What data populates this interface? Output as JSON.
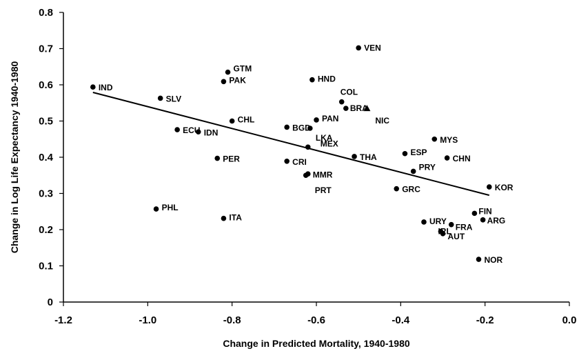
{
  "chart_data": {
    "type": "scatter",
    "xlabel": "Change in Predicted Mortality, 1940-1980",
    "ylabel": "Change in Log Life Expectancy 1940-1980",
    "xlim": [
      -1.2,
      0.0
    ],
    "ylim": [
      0,
      0.8
    ],
    "x_ticks": [
      -1.2,
      -1.0,
      -0.8,
      -0.6,
      -0.4,
      -0.2,
      0.0
    ],
    "x_tick_labels": [
      "-1.2",
      "-1.0",
      "-0.8",
      "-0.6",
      "-0.4",
      "-0.2",
      "0.0"
    ],
    "y_ticks": [
      0,
      0.1,
      0.2,
      0.3,
      0.4,
      0.5,
      0.6,
      0.7,
      0.8
    ],
    "y_tick_labels": [
      "0",
      "0.1",
      "0.2",
      "0.3",
      "0.4",
      "0.5",
      "0.6",
      "0.7",
      "0.8"
    ],
    "grid": false,
    "points": [
      {
        "label": "IND",
        "x": -1.13,
        "y": 0.594
      },
      {
        "label": "SLV",
        "x": -0.97,
        "y": 0.563
      },
      {
        "label": "ECU",
        "x": -0.93,
        "y": 0.476
      },
      {
        "label": "IDN",
        "x": -0.88,
        "y": 0.47
      },
      {
        "label": "GTM",
        "x": -0.81,
        "y": 0.635
      },
      {
        "label": "PAK",
        "x": -0.82,
        "y": 0.609
      },
      {
        "label": "CHL",
        "x": -0.8,
        "y": 0.5
      },
      {
        "label": "PER",
        "x": -0.835,
        "y": 0.397
      },
      {
        "label": "PHL",
        "x": -0.98,
        "y": 0.257
      },
      {
        "label": "ITA",
        "x": -0.82,
        "y": 0.231
      },
      {
        "label": "HND",
        "x": -0.61,
        "y": 0.614
      },
      {
        "label": "VEN",
        "x": -0.5,
        "y": 0.702
      },
      {
        "label": "COL",
        "x": -0.54,
        "y": 0.553
      },
      {
        "label": "BRA",
        "x": -0.53,
        "y": 0.535
      },
      {
        "label": "NIC",
        "x": -0.48,
        "y": 0.535
      },
      {
        "label": "PAN",
        "x": -0.6,
        "y": 0.503
      },
      {
        "label": "BGD",
        "x": -0.67,
        "y": 0.483
      },
      {
        "label": "LKA",
        "x": -0.615,
        "y": 0.48
      },
      {
        "label": "MEX",
        "x": -0.62,
        "y": 0.428
      },
      {
        "label": "CRI",
        "x": -0.67,
        "y": 0.389
      },
      {
        "label": "MMR",
        "x": -0.625,
        "y": 0.35
      },
      {
        "label": "PRT",
        "x": -0.62,
        "y": 0.354
      },
      {
        "label": "THA",
        "x": -0.51,
        "y": 0.402
      },
      {
        "label": "ESP",
        "x": -0.39,
        "y": 0.41
      },
      {
        "label": "PRY",
        "x": -0.37,
        "y": 0.361
      },
      {
        "label": "GRC",
        "x": -0.41,
        "y": 0.313
      },
      {
        "label": "MYS",
        "x": -0.32,
        "y": 0.45
      },
      {
        "label": "CHN",
        "x": -0.29,
        "y": 0.398
      },
      {
        "label": "KOR",
        "x": -0.19,
        "y": 0.318
      },
      {
        "label": "FIN",
        "x": -0.225,
        "y": 0.245
      },
      {
        "label": "ARG",
        "x": -0.205,
        "y": 0.227
      },
      {
        "label": "URY",
        "x": -0.345,
        "y": 0.221
      },
      {
        "label": "FRA",
        "x": -0.28,
        "y": 0.214
      },
      {
        "label": "IRL",
        "x": -0.305,
        "y": 0.195
      },
      {
        "label": "AUT",
        "x": -0.3,
        "y": 0.189
      },
      {
        "label": "NOR",
        "x": -0.215,
        "y": 0.118
      }
    ],
    "trendline": {
      "x": [
        -1.13,
        -0.19
      ],
      "y": [
        0.579,
        0.295
      ]
    }
  }
}
